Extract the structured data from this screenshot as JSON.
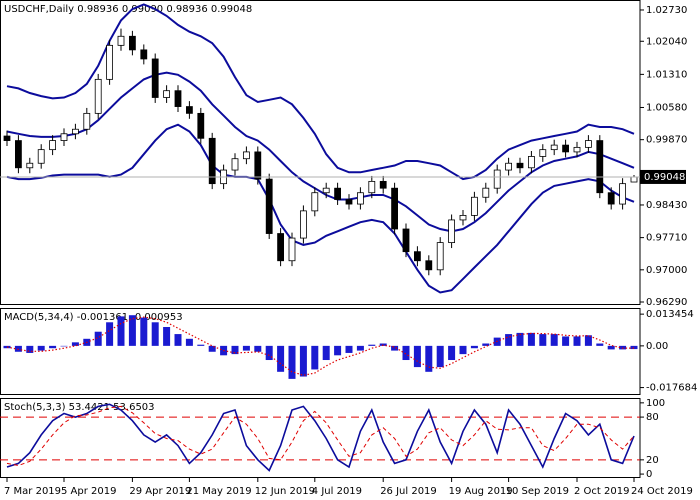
{
  "chart_data": [
    {
      "type": "candlestick",
      "title": "USDCHF,Daily  0.98936 0.99090 0.98936 0.99048",
      "categories": [
        "7 Mar 2019",
        null,
        null,
        null,
        null,
        "5 Apr 2019",
        null,
        null,
        null,
        null,
        null,
        "29 Apr 2019",
        null,
        null,
        null,
        null,
        "21 May 2019",
        null,
        null,
        null,
        null,
        null,
        "12 Jun 2019",
        null,
        null,
        null,
        null,
        "4 Jul 2019",
        null,
        null,
        null,
        null,
        null,
        "26 Jul 2019",
        null,
        null,
        null,
        null,
        null,
        "19 Aug 2019",
        null,
        null,
        null,
        null,
        "10 Sep 2019",
        null,
        null,
        null,
        null,
        null,
        "2 Oct 2019",
        null,
        null,
        null,
        null,
        "24 Oct 2019"
      ],
      "open": [
        0.9995,
        0.9985,
        0.9925,
        0.9935,
        0.9965,
        0.9985,
        1.0,
        1.001,
        1.0045,
        1.012,
        1.0195,
        1.0215,
        1.0185,
        1.0165,
        1.008,
        1.0095,
        1.006,
        1.0045,
        0.999,
        0.989,
        0.992,
        0.9945,
        0.996,
        0.99,
        0.978,
        0.972,
        0.977,
        0.983,
        0.987,
        0.988,
        0.9855,
        0.9845,
        0.987,
        0.9895,
        0.988,
        0.979,
        0.974,
        0.972,
        0.97,
        0.976,
        0.981,
        0.982,
        0.986,
        0.988,
        0.992,
        0.9935,
        0.9925,
        0.995,
        0.9965,
        0.9975,
        0.996,
        0.997,
        0.9985,
        0.987,
        0.9845,
        0.98936
      ],
      "high": [
        1.0007,
        0.9997,
        0.9947,
        0.9977,
        0.9997,
        1.0012,
        1.0022,
        1.0057,
        1.0132,
        1.0207,
        1.0232,
        1.0227,
        1.0197,
        1.0177,
        1.0107,
        1.0107,
        1.0072,
        1.0057,
        1.0002,
        0.9932,
        0.9957,
        0.9972,
        0.9972,
        0.9912,
        0.9792,
        0.9782,
        0.9842,
        0.9882,
        0.9892,
        0.9892,
        0.9867,
        0.9882,
        0.9907,
        0.9907,
        0.9892,
        0.9802,
        0.9752,
        0.9732,
        0.9772,
        0.9822,
        0.9832,
        0.9872,
        0.9892,
        0.9932,
        0.9947,
        0.9947,
        0.9962,
        0.9977,
        0.9987,
        0.9987,
        0.9982,
        0.9997,
        0.9997,
        0.9882,
        0.9902,
        0.9909
      ],
      "low": [
        0.9973,
        0.9913,
        0.9913,
        0.9923,
        0.9953,
        0.9973,
        0.9988,
        0.9998,
        1.0033,
        1.0108,
        1.0183,
        1.0173,
        1.0153,
        1.0068,
        1.0068,
        1.0048,
        1.0033,
        0.9978,
        0.9878,
        0.9878,
        0.9908,
        0.9933,
        0.9888,
        0.9768,
        0.9708,
        0.9708,
        0.9758,
        0.9818,
        0.9858,
        0.9843,
        0.9833,
        0.9833,
        0.9858,
        0.9868,
        0.9778,
        0.9728,
        0.9708,
        0.9688,
        0.9688,
        0.9748,
        0.9798,
        0.9808,
        0.9848,
        0.9868,
        0.9908,
        0.9913,
        0.9913,
        0.9938,
        0.9953,
        0.9948,
        0.9948,
        0.9958,
        0.9858,
        0.9833,
        0.9833,
        0.98936
      ],
      "close": [
        0.9985,
        0.9925,
        0.9935,
        0.9965,
        0.9985,
        1.0,
        1.001,
        1.0045,
        1.012,
        1.0195,
        1.0215,
        1.0185,
        1.0165,
        1.008,
        1.0095,
        1.006,
        1.0045,
        0.999,
        0.989,
        0.992,
        0.9945,
        0.996,
        0.99,
        0.978,
        0.972,
        0.977,
        0.983,
        0.987,
        0.988,
        0.9855,
        0.9845,
        0.987,
        0.9895,
        0.988,
        0.979,
        0.974,
        0.972,
        0.97,
        0.976,
        0.981,
        0.982,
        0.986,
        0.988,
        0.992,
        0.9935,
        0.9925,
        0.995,
        0.9965,
        0.9975,
        0.996,
        0.997,
        0.9985,
        0.987,
        0.9845,
        0.989,
        0.99048
      ],
      "overlays": [
        {
          "color": "#0c0c9c",
          "values": [
            1.0105,
            1.01,
            1.009,
            1.0083,
            1.0078,
            1.008,
            1.009,
            1.011,
            1.015,
            1.0205,
            1.025,
            1.0275,
            1.0285,
            1.0275,
            1.026,
            1.024,
            1.0225,
            1.0215,
            1.02,
            1.017,
            1.0125,
            1.0085,
            1.007,
            1.0075,
            1.008,
            1.0065,
            1.0035,
            1.0,
            0.9955,
            0.9925,
            0.9915,
            0.9915,
            0.992,
            0.9925,
            0.993,
            0.994,
            0.994,
            0.9935,
            0.993,
            0.9915,
            0.99,
            0.9905,
            0.992,
            0.9945,
            0.9965,
            0.9975,
            0.9985,
            0.999,
            0.9995,
            1.0,
            1.0005,
            1.002,
            1.0015,
            1.0015,
            1.001,
            1.0
          ]
        },
        {
          "color": "#0c0c9c",
          "values": [
            1.0005,
            1.0,
            0.9995,
            0.9993,
            0.9993,
            0.9995,
            1.0,
            1.001,
            1.003,
            1.0055,
            1.008,
            1.01,
            1.012,
            1.013,
            1.0135,
            1.013,
            1.0115,
            1.0095,
            1.0065,
            1.004,
            1.0015,
            0.9995,
            0.9985,
            0.9965,
            0.994,
            0.9915,
            0.9895,
            0.988,
            0.9865,
            0.9855,
            0.9855,
            0.986,
            0.9865,
            0.9865,
            0.9855,
            0.984,
            0.982,
            0.98,
            0.979,
            0.9785,
            0.979,
            0.9805,
            0.9825,
            0.985,
            0.9875,
            0.9895,
            0.9915,
            0.993,
            0.994,
            0.9945,
            0.995,
            0.996,
            0.9955,
            0.9945,
            0.9935,
            0.9925
          ]
        },
        {
          "color": "#0c0c9c",
          "values": [
            0.9905,
            0.99,
            0.99,
            0.9903,
            0.9908,
            0.991,
            0.991,
            0.991,
            0.991,
            0.9905,
            0.991,
            0.9925,
            0.9955,
            0.9985,
            1.001,
            1.002,
            1.0005,
            0.9975,
            0.993,
            0.991,
            0.9905,
            0.9905,
            0.99,
            0.9855,
            0.98,
            0.9765,
            0.9755,
            0.976,
            0.9775,
            0.9785,
            0.9795,
            0.9805,
            0.981,
            0.9805,
            0.978,
            0.974,
            0.97,
            0.9665,
            0.965,
            0.9655,
            0.968,
            0.9705,
            0.973,
            0.9755,
            0.9785,
            0.9815,
            0.9845,
            0.987,
            0.9885,
            0.989,
            0.9895,
            0.99,
            0.9895,
            0.9875,
            0.986,
            0.985
          ]
        }
      ],
      "ylim": [
        0.96224,
        1.0295
      ],
      "yticks": [
        {
          "value": 1.0273,
          "label": "1.02730"
        },
        {
          "value": 1.0204,
          "label": "1.02040"
        },
        {
          "value": 1.0131,
          "label": "1.01310"
        },
        {
          "value": 1.0058,
          "label": "1.00580"
        },
        {
          "value": 0.9987,
          "label": "0.99870"
        },
        {
          "value": 0.9843,
          "label": "0.98430"
        },
        {
          "value": 0.9771,
          "label": "0.97710"
        },
        {
          "value": 0.97,
          "label": "0.97000"
        },
        {
          "value": 0.9629,
          "label": "0.96290"
        }
      ],
      "last_price": 0.99048
    },
    {
      "type": "macd",
      "title": "MACD(5,34,4) -0.001361 -0.000953",
      "series": [
        {
          "type": "bar",
          "color": "#1a1ad0",
          "values": [
            -0.001,
            -0.0025,
            -0.003,
            -0.002,
            -0.001,
            0.0,
            0.0015,
            0.003,
            0.006,
            0.01,
            0.0125,
            0.013,
            0.012,
            0.01,
            0.008,
            0.005,
            0.003,
            0.0005,
            -0.0025,
            -0.004,
            -0.0035,
            -0.002,
            -0.0025,
            -0.006,
            -0.011,
            -0.014,
            -0.013,
            -0.01,
            -0.006,
            -0.004,
            -0.003,
            -0.002,
            0.0005,
            0.001,
            -0.002,
            -0.006,
            -0.009,
            -0.011,
            -0.009,
            -0.006,
            -0.0035,
            -0.001,
            0.001,
            0.0035,
            0.005,
            0.0055,
            0.0055,
            0.005,
            0.005,
            0.004,
            0.004,
            0.0045,
            0.001,
            -0.0015,
            -0.0015,
            -0.001361
          ]
        },
        {
          "type": "line",
          "style": "dotted",
          "color": "#e00000",
          "values": [
            -0.0005,
            -0.0015,
            -0.0023,
            -0.0023,
            -0.0018,
            -0.001,
            0.0,
            0.0015,
            0.0035,
            0.0065,
            0.0095,
            0.0115,
            0.0122,
            0.0115,
            0.01,
            0.0075,
            0.005,
            0.0025,
            0.0,
            -0.002,
            -0.003,
            -0.0028,
            -0.0025,
            -0.004,
            -0.0075,
            -0.011,
            -0.0125,
            -0.0115,
            -0.0085,
            -0.006,
            -0.0045,
            -0.003,
            -0.001,
            0.0003,
            -0.0005,
            -0.0035,
            -0.0065,
            -0.009,
            -0.0095,
            -0.0075,
            -0.005,
            -0.0025,
            -0.0003,
            0.002,
            0.0038,
            0.0048,
            0.0053,
            0.0052,
            0.005,
            0.0045,
            0.0042,
            0.0043,
            0.0025,
            0.0002,
            -0.001,
            -0.000953
          ]
        }
      ],
      "ylim": [
        -0.020833,
        0.016058
      ],
      "yticks": [
        0.013454,
        {
          "value": 0,
          "label": "0.00"
        },
        -0.017684
      ]
    },
    {
      "type": "stochastic",
      "title": "Stoch(5,3,3) 53.4421 53.6503",
      "series": [
        {
          "type": "line",
          "style": "solid",
          "color": "#0c0c9c",
          "values": [
            10,
            15,
            30,
            55,
            75,
            85,
            80,
            85,
            95,
            98,
            90,
            75,
            55,
            45,
            55,
            40,
            15,
            30,
            55,
            85,
            90,
            40,
            20,
            5,
            40,
            90,
            95,
            75,
            50,
            20,
            10,
            60,
            90,
            45,
            15,
            20,
            60,
            90,
            45,
            15,
            60,
            90,
            70,
            30,
            90,
            70,
            40,
            10,
            50,
            85,
            75,
            55,
            70,
            20,
            15,
            53.4421
          ]
        },
        {
          "type": "line",
          "style": "dashed",
          "color": "#e00000",
          "values": [
            15,
            12,
            18,
            35,
            55,
            72,
            82,
            83,
            87,
            93,
            95,
            86,
            72,
            57,
            50,
            47,
            35,
            28,
            35,
            58,
            80,
            70,
            50,
            22,
            20,
            45,
            75,
            88,
            72,
            48,
            25,
            30,
            55,
            65,
            50,
            25,
            35,
            58,
            65,
            48,
            40,
            55,
            75,
            63,
            62,
            65,
            65,
            40,
            33,
            50,
            70,
            70,
            65,
            48,
            35,
            53.6503
          ]
        }
      ],
      "ylim": [
        -5.5,
        106.8
      ],
      "yticks": [
        100,
        80,
        20,
        0
      ],
      "levels": [
        20,
        80
      ],
      "level_color": "#e00000"
    }
  ]
}
